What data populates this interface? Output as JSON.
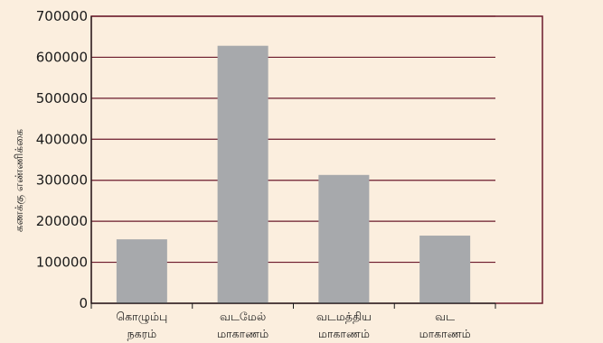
{
  "chart_data": {
    "type": "bar",
    "categories": [
      [
        "கொழும்பு",
        "நகரம்"
      ],
      [
        "வடமேல்",
        "மாகாணம்"
      ],
      [
        "வடமத்திய",
        "மாகாணம்"
      ],
      [
        "வட",
        "மாகாணம்"
      ]
    ],
    "values": [
      156000,
      628000,
      313000,
      165000
    ],
    "ylabel": "கணக்கு எண்ணிக்கை",
    "xlabel": "",
    "ylim": [
      0,
      700000
    ],
    "yticks": [
      0,
      100000,
      200000,
      300000,
      400000,
      500000,
      600000,
      700000
    ],
    "grid": true,
    "colors": {
      "background": "#fbeede",
      "bar": "#a7a9ac",
      "grid": "#6b1a2b",
      "frame": "#6b1a2b",
      "axis": "#1a1a1a"
    }
  }
}
